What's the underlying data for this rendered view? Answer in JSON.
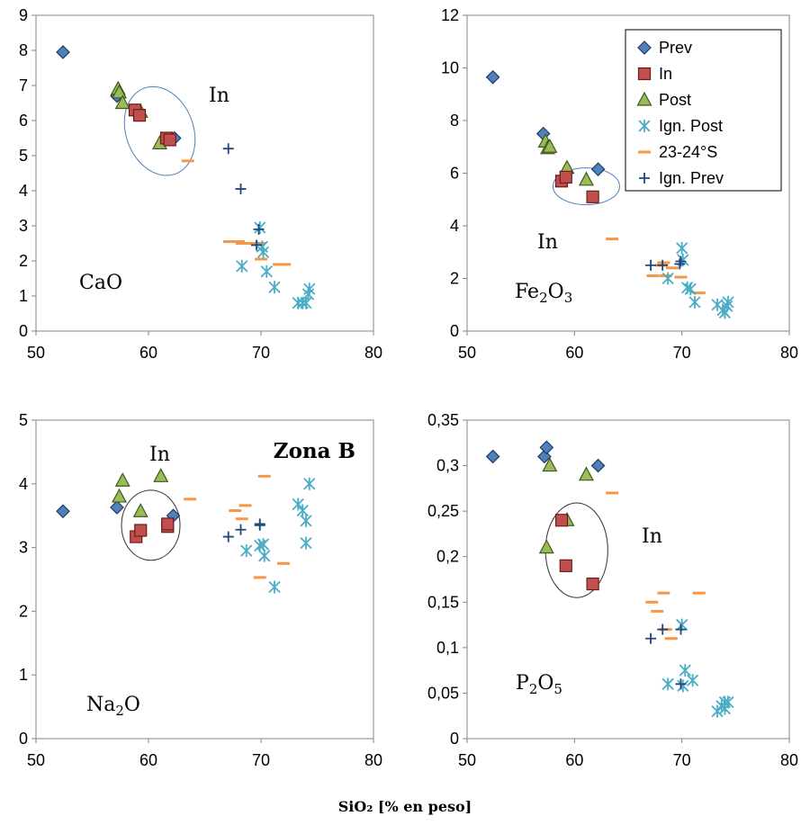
{
  "figure": {
    "zone_label": "Zona B",
    "x_axis_title": "SiO₂ [% en peso]"
  },
  "legend": [
    {
      "name": "Prev",
      "marker": "diamond",
      "color": "#4f81bd"
    },
    {
      "name": "In",
      "marker": "square",
      "color": "#c0504d"
    },
    {
      "name": "Post",
      "marker": "triangle",
      "color": "#9bbb59"
    },
    {
      "name": "Ign. Post",
      "marker": "asterisk",
      "color": "#4bacc6"
    },
    {
      "name": "23-24°S",
      "marker": "dash",
      "color": "#f79646"
    },
    {
      "name": "Ign. Prev",
      "marker": "plus",
      "color": "#1f497d"
    }
  ],
  "chart_data": [
    {
      "type": "scatter",
      "ylabel": "CaO",
      "label_main": "CaO",
      "label_sub": "",
      "field_label": "In",
      "xlim": [
        50,
        80
      ],
      "ylim": [
        0,
        9
      ],
      "xticks": [
        "50",
        "60",
        "70",
        "80"
      ],
      "yticks": [
        "0",
        "1",
        "2",
        "3",
        "4",
        "5",
        "6",
        "7",
        "8",
        "9"
      ],
      "series": [
        {
          "name": "Prev",
          "points": [
            [
              52.4,
              7.95
            ],
            [
              57.2,
              6.7
            ],
            [
              62.3,
              5.5
            ]
          ]
        },
        {
          "name": "In",
          "points": [
            [
              58.8,
              6.3
            ],
            [
              59.2,
              6.15
            ],
            [
              61.6,
              5.5
            ],
            [
              61.9,
              5.45
            ]
          ]
        },
        {
          "name": "Post",
          "points": [
            [
              57.3,
              6.9
            ],
            [
              57.4,
              6.8
            ],
            [
              57.7,
              6.5
            ],
            [
              59.3,
              6.25
            ],
            [
              61.0,
              5.35
            ]
          ]
        },
        {
          "name": "Ign. Post",
          "points": [
            [
              69.9,
              2.95
            ],
            [
              70.1,
              2.4
            ],
            [
              70.2,
              2.25
            ],
            [
              68.3,
              1.85
            ],
            [
              70.5,
              1.7
            ],
            [
              71.2,
              1.25
            ],
            [
              73.3,
              0.8
            ],
            [
              73.7,
              0.8
            ],
            [
              74.0,
              0.8
            ],
            [
              74.2,
              1.05
            ],
            [
              74.3,
              1.2
            ]
          ]
        },
        {
          "name": "23-24°S",
          "points": [
            [
              63.5,
              4.85
            ],
            [
              67.2,
              2.55
            ],
            [
              68.0,
              2.55
            ],
            [
              68.3,
              2.5
            ],
            [
              69.0,
              2.5
            ],
            [
              69.8,
              2.5
            ],
            [
              70.0,
              2.05
            ],
            [
              71.6,
              1.9
            ],
            [
              72.1,
              1.9
            ]
          ]
        },
        {
          "name": "Ign. Prev",
          "points": [
            [
              67.1,
              5.2
            ],
            [
              68.2,
              4.05
            ],
            [
              69.8,
              2.9
            ],
            [
              69.6,
              2.45
            ]
          ]
        }
      ]
    },
    {
      "type": "scatter",
      "ylabel": "Fe2O3",
      "label_main": "Fe",
      "label_sub": "2",
      "label_main2": "O",
      "label_sub2": "3",
      "field_label": "In",
      "xlim": [
        50,
        80
      ],
      "ylim": [
        0,
        12
      ],
      "xticks": [
        "50",
        "60",
        "70",
        "80"
      ],
      "yticks": [
        "0",
        "2",
        "4",
        "6",
        "8",
        "10",
        "12"
      ],
      "series": [
        {
          "name": "Prev",
          "points": [
            [
              52.4,
              9.65
            ],
            [
              57.1,
              7.5
            ],
            [
              62.2,
              6.15
            ]
          ]
        },
        {
          "name": "In",
          "points": [
            [
              58.8,
              5.7
            ],
            [
              59.2,
              5.85
            ],
            [
              61.7,
              5.1
            ]
          ]
        },
        {
          "name": "Post",
          "points": [
            [
              57.3,
              7.2
            ],
            [
              57.5,
              6.95
            ],
            [
              57.7,
              7.0
            ],
            [
              59.3,
              6.2
            ],
            [
              61.1,
              5.75
            ]
          ]
        },
        {
          "name": "Ign. Post",
          "points": [
            [
              70.0,
              3.15
            ],
            [
              70.1,
              2.7
            ],
            [
              68.7,
              2.0
            ],
            [
              70.5,
              1.65
            ],
            [
              70.8,
              1.6
            ],
            [
              71.2,
              1.1
            ],
            [
              73.3,
              1.0
            ],
            [
              73.8,
              0.8
            ],
            [
              74.0,
              0.7
            ],
            [
              74.2,
              0.95
            ],
            [
              74.3,
              1.1
            ]
          ]
        },
        {
          "name": "23-24°S",
          "points": [
            [
              63.5,
              3.5
            ],
            [
              67.3,
              2.1
            ],
            [
              68.1,
              2.5
            ],
            [
              68.5,
              2.1
            ],
            [
              69.1,
              2.4
            ],
            [
              69.9,
              2.05
            ],
            [
              71.6,
              1.45
            ],
            [
              68.3,
              2.6
            ]
          ]
        },
        {
          "name": "Ign. Prev",
          "points": [
            [
              67.1,
              2.5
            ],
            [
              68.2,
              2.5
            ],
            [
              69.8,
              2.55
            ],
            [
              69.9,
              2.65
            ]
          ]
        }
      ]
    },
    {
      "type": "scatter",
      "ylabel": "Na2O",
      "label_main": "Na",
      "label_sub": "2",
      "label_main2": "O",
      "label_sub2": "",
      "field_label": "In",
      "xlim": [
        50,
        80
      ],
      "ylim": [
        0,
        5
      ],
      "xticks": [
        "50",
        "60",
        "70",
        "80"
      ],
      "yticks": [
        "0",
        "1",
        "2",
        "3",
        "4",
        "5"
      ],
      "series": [
        {
          "name": "Prev",
          "points": [
            [
              52.4,
              3.57
            ],
            [
              57.2,
              3.63
            ],
            [
              62.2,
              3.5
            ]
          ]
        },
        {
          "name": "In",
          "points": [
            [
              58.9,
              3.17
            ],
            [
              59.3,
              3.27
            ],
            [
              61.7,
              3.33
            ],
            [
              61.7,
              3.37
            ]
          ]
        },
        {
          "name": "Post",
          "points": [
            [
              57.4,
              3.8
            ],
            [
              57.7,
              4.05
            ],
            [
              59.3,
              3.57
            ],
            [
              61.1,
              4.12
            ]
          ]
        },
        {
          "name": "Ign. Post",
          "points": [
            [
              73.3,
              3.68
            ],
            [
              73.7,
              3.58
            ],
            [
              74.0,
              3.42
            ],
            [
              74.3,
              4.0
            ],
            [
              74.0,
              3.07
            ],
            [
              68.7,
              2.95
            ],
            [
              69.9,
              3.03
            ],
            [
              70.2,
              3.05
            ],
            [
              70.3,
              2.87
            ],
            [
              71.2,
              2.38
            ]
          ]
        },
        {
          "name": "23-24°S",
          "points": [
            [
              63.7,
              3.76
            ],
            [
              67.7,
              3.58
            ],
            [
              68.3,
              3.45
            ],
            [
              68.6,
              3.66
            ],
            [
              70.3,
              4.12
            ],
            [
              69.9,
              2.53
            ],
            [
              72.0,
              2.75
            ]
          ]
        },
        {
          "name": "Ign. Prev",
          "points": [
            [
              67.1,
              3.17
            ],
            [
              68.2,
              3.28
            ],
            [
              69.9,
              3.35
            ],
            [
              69.9,
              3.37
            ]
          ]
        }
      ]
    },
    {
      "type": "scatter",
      "ylabel": "P2O5",
      "label_main": "P",
      "label_sub": "2",
      "label_main2": "O",
      "label_sub2": "5",
      "field_label": "In",
      "xlim": [
        50,
        80
      ],
      "ylim": [
        0,
        0.35
      ],
      "xticks": [
        "50",
        "60",
        "70",
        "80"
      ],
      "yticks": [
        "0",
        "0,05",
        "0,1",
        "0,15",
        "0,2",
        "0,25",
        "0,3",
        "0,35"
      ],
      "series": [
        {
          "name": "Prev",
          "points": [
            [
              52.4,
              0.31
            ],
            [
              57.2,
              0.31
            ],
            [
              57.4,
              0.32
            ],
            [
              62.2,
              0.3
            ]
          ]
        },
        {
          "name": "In",
          "points": [
            [
              58.8,
              0.24
            ],
            [
              59.2,
              0.19
            ],
            [
              61.7,
              0.17
            ]
          ]
        },
        {
          "name": "Post",
          "points": [
            [
              57.7,
              0.3
            ],
            [
              59.3,
              0.24
            ],
            [
              61.1,
              0.29
            ],
            [
              57.4,
              0.21
            ]
          ]
        },
        {
          "name": "Ign. Post",
          "points": [
            [
              70.0,
              0.125
            ],
            [
              68.7,
              0.06
            ],
            [
              70.3,
              0.075
            ],
            [
              70.1,
              0.058
            ],
            [
              71.0,
              0.064
            ],
            [
              73.3,
              0.03
            ],
            [
              73.7,
              0.036
            ],
            [
              74.0,
              0.04
            ],
            [
              74.3,
              0.04
            ],
            [
              74.0,
              0.033
            ]
          ]
        },
        {
          "name": "23-24°S",
          "points": [
            [
              63.5,
              0.27
            ],
            [
              67.2,
              0.15
            ],
            [
              67.7,
              0.14
            ],
            [
              68.3,
              0.16
            ],
            [
              68.5,
              0.12
            ],
            [
              69.0,
              0.11
            ],
            [
              71.6,
              0.16
            ]
          ]
        },
        {
          "name": "Ign. Prev",
          "points": [
            [
              67.1,
              0.11
            ],
            [
              68.2,
              0.12
            ],
            [
              69.9,
              0.12
            ],
            [
              69.9,
              0.06
            ]
          ]
        }
      ]
    }
  ]
}
